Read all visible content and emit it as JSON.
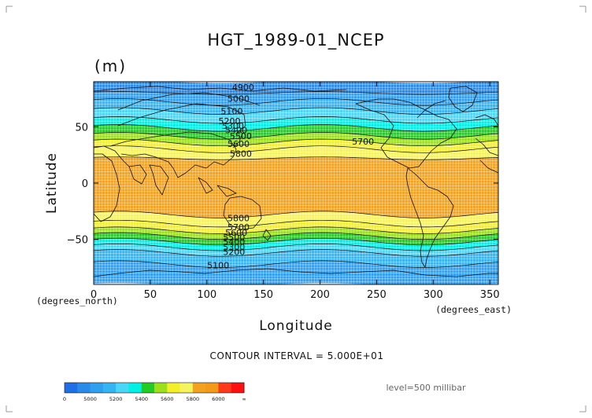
{
  "chart_data": {
    "type": "heatmap",
    "title": "HGT_1989-01_NCEP",
    "units": "(m)",
    "xlabel": "Longitude",
    "ylabel": "Latitude",
    "x_unit_note": "(degrees_east)",
    "y_unit_note": "(degrees_north)",
    "xlim": [
      0,
      357.5
    ],
    "ylim": [
      -90,
      90
    ],
    "x_ticks": [
      0,
      50,
      100,
      150,
      200,
      250,
      300,
      350
    ],
    "y_ticks": [
      50,
      0,
      -50
    ],
    "x_tick_labels": [
      "0",
      "50",
      "100",
      "150",
      "200",
      "250",
      "300",
      "350"
    ],
    "y_tick_labels": [
      "50",
      "0",
      "−50"
    ],
    "grid": true,
    "contour_interval_text": "CONTOUR INTERVAL = 5.000E+01",
    "level_text": "level=500 millibar",
    "colorbar": {
      "labels": [
        "0",
        "5000",
        "5200",
        "5400",
        "5600",
        "5800",
        "6000",
        "∞"
      ],
      "bands": [
        {
          "from": 0,
          "to": 4900,
          "color": "#1f6fe6"
        },
        {
          "from": 4900,
          "to": 5000,
          "color": "#2a8ae8"
        },
        {
          "from": 5000,
          "to": 5100,
          "color": "#2f9ff0"
        },
        {
          "from": 5100,
          "to": 5200,
          "color": "#35b4f2"
        },
        {
          "from": 5200,
          "to": 5300,
          "color": "#49d6f7"
        },
        {
          "from": 5300,
          "to": 5400,
          "color": "#00f0e6"
        },
        {
          "from": 5400,
          "to": 5500,
          "color": "#22cc22"
        },
        {
          "from": 5500,
          "to": 5600,
          "color": "#9be01b"
        },
        {
          "from": 5600,
          "to": 5700,
          "color": "#f3f02a"
        },
        {
          "from": 5700,
          "to": 5800,
          "color": "#f7f35c"
        },
        {
          "from": 5800,
          "to": 5900,
          "color": "#f2a21e"
        },
        {
          "from": 5900,
          "to": 6000,
          "color": "#f49a18"
        },
        {
          "from": 6000,
          "to": 6100,
          "color": "#ff3a1a"
        },
        {
          "from": 6100,
          "to": 99999,
          "color": "#ff1010"
        }
      ]
    },
    "zones": [
      {
        "lat_top": 90,
        "lat_bottom": 80,
        "value": 4950
      },
      {
        "lat_top": 80,
        "lat_bottom": 72,
        "value": 5050
      },
      {
        "lat_top": 72,
        "lat_bottom": 64,
        "value": 5150
      },
      {
        "lat_top": 64,
        "lat_bottom": 56,
        "value": 5250
      },
      {
        "lat_top": 56,
        "lat_bottom": 49,
        "value": 5350
      },
      {
        "lat_top": 49,
        "lat_bottom": 42,
        "value": 5450
      },
      {
        "lat_top": 42,
        "lat_bottom": 36,
        "value": 5550
      },
      {
        "lat_top": 36,
        "lat_bottom": 30,
        "value": 5650
      },
      {
        "lat_top": 30,
        "lat_bottom": 22,
        "value": 5750
      },
      {
        "lat_top": 22,
        "lat_bottom": -28,
        "value": 5850
      },
      {
        "lat_top": -28,
        "lat_bottom": -36,
        "value": 5750
      },
      {
        "lat_top": -36,
        "lat_bottom": -42,
        "value": 5650
      },
      {
        "lat_top": -42,
        "lat_bottom": -47,
        "value": 5550
      },
      {
        "lat_top": -47,
        "lat_bottom": -52,
        "value": 5450
      },
      {
        "lat_top": -52,
        "lat_bottom": -57,
        "value": 5350
      },
      {
        "lat_top": -57,
        "lat_bottom": -62,
        "value": 5250
      },
      {
        "lat_top": -62,
        "lat_bottom": -72,
        "value": 5150
      },
      {
        "lat_top": -72,
        "lat_bottom": -90,
        "value": 5050
      }
    ],
    "contour_labels": [
      {
        "text": "4900",
        "lon": 132,
        "lat": 85
      },
      {
        "text": "5000",
        "lon": 128,
        "lat": 75
      },
      {
        "text": "5100",
        "lon": 122,
        "lat": 64
      },
      {
        "text": "5200",
        "lon": 120,
        "lat": 55
      },
      {
        "text": "5300",
        "lon": 123,
        "lat": 51
      },
      {
        "text": "5400",
        "lon": 126,
        "lat": 47
      },
      {
        "text": "5500",
        "lon": 130,
        "lat": 42
      },
      {
        "text": "5600",
        "lon": 128,
        "lat": 35
      },
      {
        "text": "5700",
        "lon": 238,
        "lat": 37
      },
      {
        "text": "5800",
        "lon": 130,
        "lat": 26
      },
      {
        "text": "5800",
        "lon": 128,
        "lat": -31
      },
      {
        "text": "5700",
        "lon": 128,
        "lat": -39
      },
      {
        "text": "5600",
        "lon": 126,
        "lat": -44
      },
      {
        "text": "5500",
        "lon": 124,
        "lat": -48
      },
      {
        "text": "5400",
        "lon": 124,
        "lat": -52
      },
      {
        "text": "5300",
        "lon": 124,
        "lat": -57
      },
      {
        "text": "5200",
        "lon": 124,
        "lat": -61
      },
      {
        "text": "5100",
        "lon": 110,
        "lat": -73
      }
    ]
  }
}
